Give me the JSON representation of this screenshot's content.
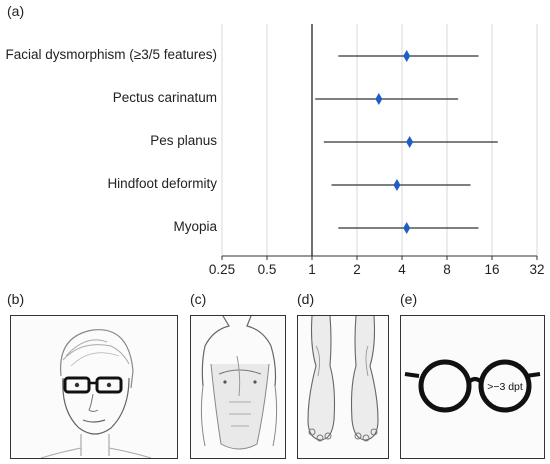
{
  "panels": {
    "a": "(a)",
    "b": "(b)",
    "c": "(c)",
    "d": "(d)",
    "e": "(e)"
  },
  "colors": {
    "marker": "#1f5fc4",
    "ci": "#333333",
    "grid": "#d9d9d9",
    "refline": "#222222"
  },
  "chart_data": {
    "type": "forest",
    "x_scale": "log2",
    "xlim": [
      0.25,
      32
    ],
    "xticks": [
      "0.25",
      "0.5",
      "1",
      "2",
      "4",
      "8",
      "16",
      "32"
    ],
    "reference_value": 1,
    "grid": true,
    "rows": [
      {
        "label": "Facial dysmorphism (≥3/5 features)",
        "estimate": 4.3,
        "lower": 1.5,
        "upper": 13.0
      },
      {
        "label": "Pectus carinatum",
        "estimate": 2.8,
        "lower": 1.05,
        "upper": 9.5
      },
      {
        "label": "Pes planus",
        "estimate": 4.5,
        "lower": 1.2,
        "upper": 17.5
      },
      {
        "label": "Hindfoot deformity",
        "estimate": 3.7,
        "lower": 1.35,
        "upper": 11.5
      },
      {
        "label": "Myopia",
        "estimate": 4.3,
        "lower": 1.5,
        "upper": 13.0
      }
    ]
  },
  "illustrations": {
    "b": {
      "icon": "face-with-glasses-icon"
    },
    "c": {
      "icon": "chest-torso-icon"
    },
    "d": {
      "icon": "feet-icon"
    },
    "e": {
      "icon": "round-glasses-icon",
      "lens_text": ">−3 dpt"
    }
  }
}
